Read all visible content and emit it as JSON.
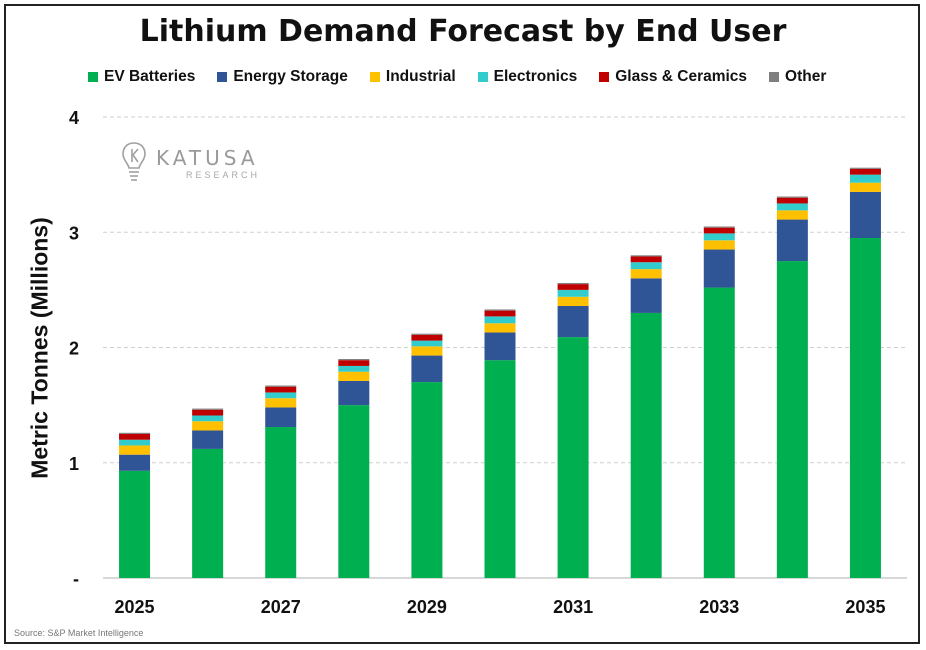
{
  "title": "Lithium Demand Forecast by End User",
  "source": "Source: S&P Market Intelligence",
  "logo": {
    "name": "KATUSA",
    "sub": "RESEARCH",
    "icon": "lightbulb-k-icon"
  },
  "colors": {
    "ev": "#00b050",
    "storage": "#2f5597",
    "industrial": "#ffc000",
    "electronics": "#33cccc",
    "glass": "#c00000",
    "other": "#7f7f7f"
  },
  "chart_data": {
    "type": "bar",
    "stacked": true,
    "title": "Lithium Demand Forecast by End User",
    "ylabel": "Metric Tonnes (Millions)",
    "xlabel": "",
    "ylim": [
      0,
      4
    ],
    "yticks": [
      "-",
      "1",
      "2",
      "3",
      "4"
    ],
    "grid": true,
    "legend_position": "top",
    "categories": [
      "2025",
      "2026",
      "2027",
      "2028",
      "2029",
      "2030",
      "2031",
      "2032",
      "2033",
      "2034",
      "2035"
    ],
    "x_tick_labels": [
      "2025",
      "2027",
      "2029",
      "2031",
      "2033",
      "2035"
    ],
    "series": [
      {
        "name": "EV Batteries",
        "color_key": "ev",
        "values": [
          0.93,
          1.12,
          1.31,
          1.5,
          1.7,
          1.89,
          2.09,
          2.3,
          2.52,
          2.75,
          2.95
        ]
      },
      {
        "name": "Energy Storage",
        "color_key": "storage",
        "values": [
          0.14,
          0.16,
          0.17,
          0.21,
          0.23,
          0.24,
          0.27,
          0.3,
          0.33,
          0.36,
          0.4
        ]
      },
      {
        "name": "Industrial",
        "color_key": "industrial",
        "values": [
          0.08,
          0.08,
          0.08,
          0.08,
          0.08,
          0.08,
          0.08,
          0.08,
          0.08,
          0.08,
          0.08
        ]
      },
      {
        "name": "Electronics",
        "color_key": "electronics",
        "values": [
          0.05,
          0.05,
          0.05,
          0.05,
          0.05,
          0.06,
          0.06,
          0.06,
          0.06,
          0.06,
          0.07
        ]
      },
      {
        "name": "Glass & Ceramics",
        "color_key": "glass",
        "values": [
          0.05,
          0.05,
          0.05,
          0.05,
          0.05,
          0.05,
          0.05,
          0.05,
          0.05,
          0.05,
          0.05
        ]
      },
      {
        "name": "Other",
        "color_key": "other",
        "values": [
          0.01,
          0.01,
          0.01,
          0.01,
          0.01,
          0.01,
          0.01,
          0.01,
          0.01,
          0.01,
          0.01
        ]
      }
    ]
  }
}
